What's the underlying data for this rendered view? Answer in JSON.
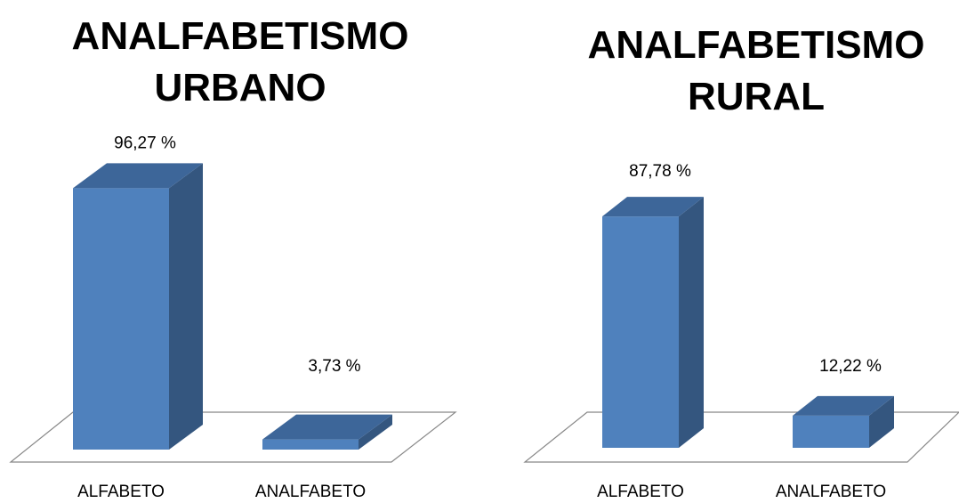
{
  "chart_data": [
    {
      "type": "bar3d",
      "title": "ANALFABETISMO URBANO",
      "categories": [
        "ALFABETO",
        "ANALFABETO"
      ],
      "values": [
        96.27,
        3.73
      ],
      "value_labels": [
        "96,27 %",
        "3,73 %"
      ],
      "color": "#4f81bd"
    },
    {
      "type": "bar3d",
      "title": "ANALFABETISMO RURAL",
      "categories": [
        "ALFABETO",
        "ANALFABETO"
      ],
      "values": [
        87.78,
        12.22
      ],
      "value_labels": [
        "87,78 %",
        "12,22 %"
      ],
      "color": "#4f81bd"
    }
  ]
}
